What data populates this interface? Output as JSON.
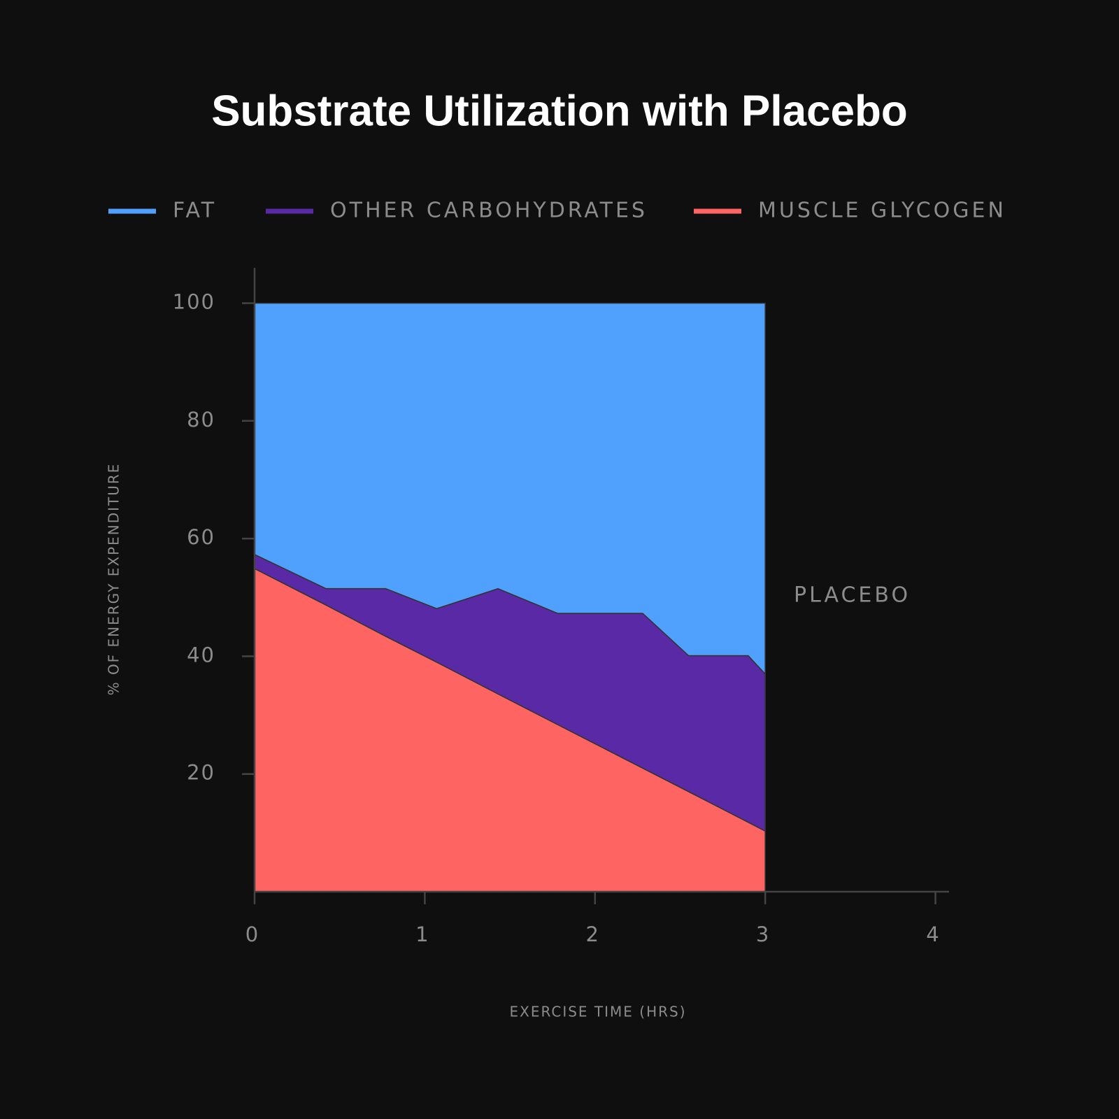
{
  "chart_data": {
    "type": "stacked-area",
    "title": "Substrate Utilization with Placebo",
    "x_label": "EXERCISE TIME (HRS)",
    "y_label": "% OF ENERGY EXPENDITURE",
    "annotation": "PLACEBO",
    "x": [
      0,
      0.42,
      0.77,
      1.07,
      1.43,
      1.78,
      2.28,
      2.55,
      2.9,
      3
    ],
    "series": [
      {
        "name": "FAT",
        "color": "#4fa1fd",
        "values": [
          42.7,
          48.5,
          48.5,
          51.9,
          48.5,
          52.7,
          52.7,
          59.9,
          59.9,
          63.0
        ]
      },
      {
        "name": "OTHER CARBOHYDRATES",
        "color": "#5a29a6",
        "values": [
          2.4,
          2.8,
          8.1,
          9.1,
          17.9,
          18.9,
          26.3,
          23.1,
          28.3,
          26.7
        ]
      },
      {
        "name": "MUSCLE GLYCOGEN",
        "color": "#fe6461",
        "values": [
          54.9,
          48.7,
          43.4,
          39.0,
          33.6,
          28.4,
          21.0,
          17.0,
          11.8,
          10.3
        ]
      }
    ],
    "xlim": [
      0,
      4.08
    ],
    "ylim": [
      0,
      106
    ],
    "xticks": [
      0,
      1,
      2,
      3,
      4
    ],
    "yticks": [
      20,
      40,
      60,
      80,
      100
    ],
    "grid": false,
    "legend": "top"
  }
}
